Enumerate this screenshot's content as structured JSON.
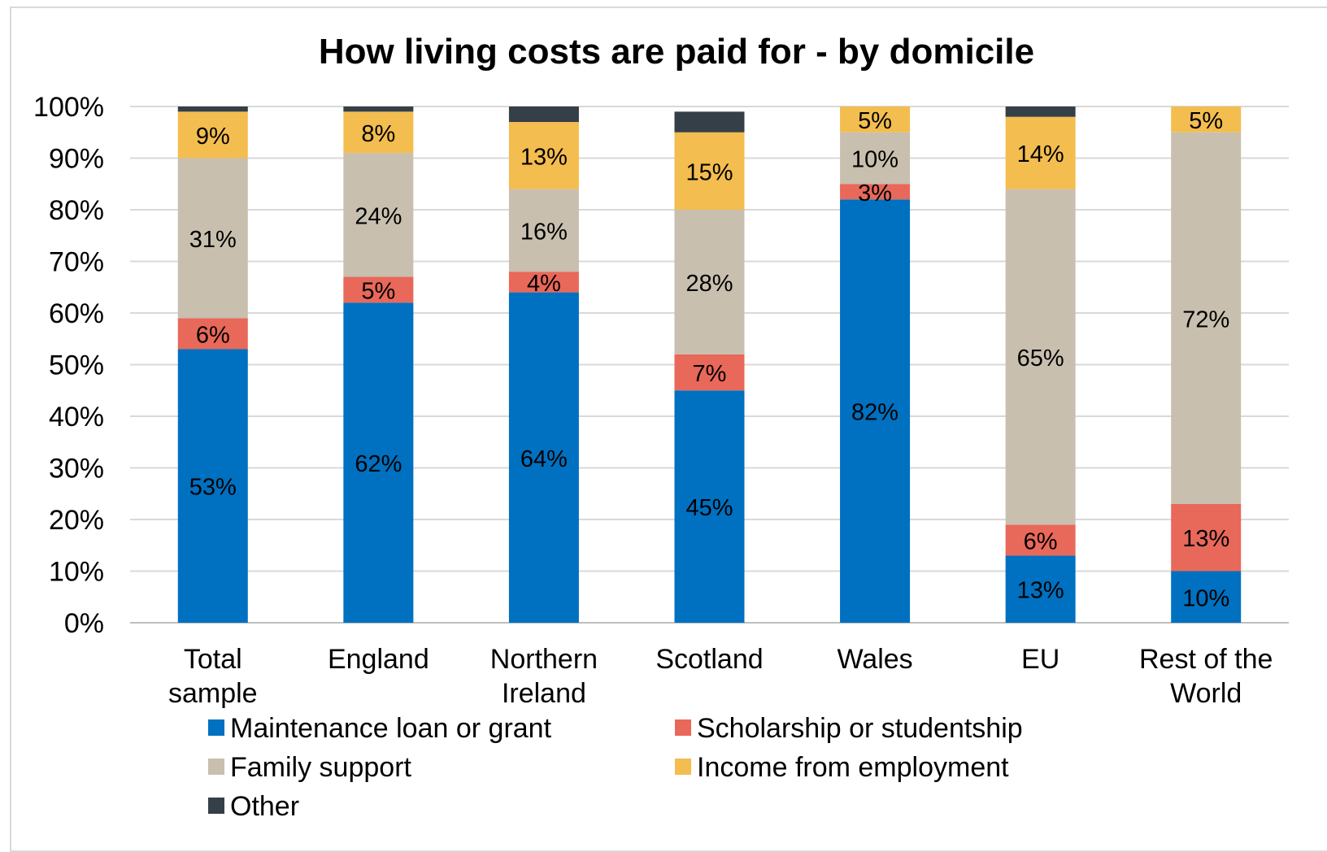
{
  "chart_data": {
    "type": "bar",
    "stacked": true,
    "title": "How living costs are paid for - by domicile",
    "categories": [
      [
        "Total",
        "sample"
      ],
      [
        "England"
      ],
      [
        "Northern",
        "Ireland"
      ],
      [
        "Scotland"
      ],
      [
        "Wales"
      ],
      [
        "EU"
      ],
      [
        "Rest of the",
        "World"
      ]
    ],
    "series": [
      {
        "name": "Maintenance loan or grant",
        "color": "#0070c0",
        "values": [
          53,
          62,
          64,
          45,
          82,
          13,
          10
        ],
        "labels": [
          "53%",
          "62%",
          "64%",
          "45%",
          "82%",
          "13%",
          "10%"
        ]
      },
      {
        "name": "Scholarship or studentship",
        "color": "#e8685a",
        "values": [
          6,
          5,
          4,
          7,
          3,
          6,
          13
        ],
        "labels": [
          "6%",
          "5%",
          "4%",
          "7%",
          "3%",
          "6%",
          "13%"
        ]
      },
      {
        "name": "Family support",
        "color": "#c8bfaf",
        "values": [
          31,
          24,
          16,
          28,
          10,
          65,
          72
        ],
        "labels": [
          "31%",
          "24%",
          "16%",
          "28%",
          "10%",
          "65%",
          "72%"
        ]
      },
      {
        "name": "Income from employment",
        "color": "#f3bd4f",
        "values": [
          9,
          8,
          13,
          15,
          5,
          14,
          5
        ],
        "labels": [
          "9%",
          "8%",
          "13%",
          "15%",
          "5%",
          "14%",
          "5%"
        ]
      },
      {
        "name": "Other",
        "color": "#353f48",
        "values": [
          1,
          1,
          3,
          4,
          0,
          2,
          0
        ],
        "labels": [
          "",
          "",
          "",
          "",
          "",
          "",
          ""
        ]
      }
    ],
    "ylim": [
      0,
      100
    ],
    "yticks": [
      "0%",
      "10%",
      "20%",
      "30%",
      "40%",
      "50%",
      "60%",
      "70%",
      "80%",
      "90%",
      "100%"
    ],
    "grid": true,
    "legend_position": "bottom"
  }
}
